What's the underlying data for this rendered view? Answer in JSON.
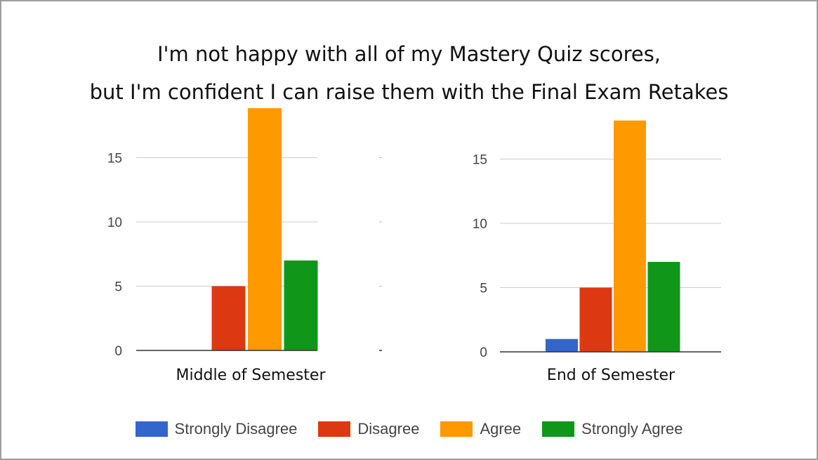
{
  "title": {
    "line1": "I'm not happy with all of my Mastery Quiz scores,",
    "line2": "but I'm confident I can raise them with the Final Exam Retakes"
  },
  "series_colors": [
    "#3366cc",
    "#dc3912",
    "#ff9900",
    "#109618"
  ],
  "chart_data": [
    {
      "type": "bar",
      "label": "Middle of Semester",
      "categories": [
        "Strongly Disagree",
        "Disagree",
        "Agree",
        "Strongly Agree"
      ],
      "values": [
        0,
        5,
        19,
        7
      ],
      "yticks": [
        0,
        5,
        10,
        15
      ],
      "ylim": [
        0,
        18.9
      ],
      "grid": true
    },
    {
      "type": "bar",
      "label": "End of Semester",
      "categories": [
        "Strongly Disagree",
        "Disagree",
        "Agree",
        "Strongly Agree"
      ],
      "values": [
        1,
        5,
        18,
        7
      ],
      "yticks": [
        0,
        5,
        10,
        15
      ],
      "ylim": [
        0,
        19
      ],
      "grid": true
    }
  ],
  "legend": {
    "position": "bottom",
    "items": [
      {
        "label": "Strongly Disagree",
        "color": "#3366cc"
      },
      {
        "label": "Disagree",
        "color": "#dc3912"
      },
      {
        "label": "Agree",
        "color": "#ff9900"
      },
      {
        "label": "Strongly Agree",
        "color": "#109618"
      }
    ]
  }
}
